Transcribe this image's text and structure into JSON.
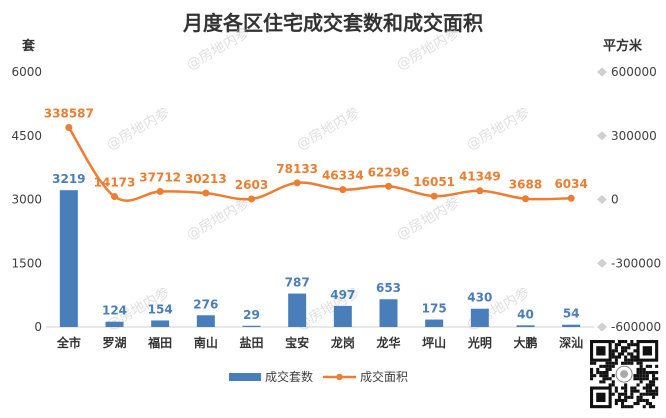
{
  "chart_data": {
    "type": "bar+line",
    "title": "月度各区住宅成交套数和成交面积",
    "y_left_unit": "套",
    "y_right_unit": "平方米",
    "y_left_range": [
      0,
      6000
    ],
    "y_left_ticks": [
      "0",
      "1500",
      "3000",
      "4500",
      "6000"
    ],
    "y_right_range": [
      -600000,
      600000
    ],
    "y_right_ticks": [
      "-600000",
      "-300000",
      "0",
      "300000",
      "600000"
    ],
    "categories": [
      "全市",
      "罗湖",
      "福田",
      "南山",
      "盐田",
      "宝安",
      "龙岗",
      "龙华",
      "坪山",
      "光明",
      "大鹏",
      "深汕"
    ],
    "series": [
      {
        "name": "成交套数",
        "type": "bar",
        "axis": "left",
        "color": "#4a7ebb",
        "values": [
          3219,
          124,
          154,
          276,
          29,
          787,
          497,
          653,
          175,
          430,
          40,
          54
        ]
      },
      {
        "name": "成交面积",
        "type": "line",
        "axis": "right",
        "color": "#ed7d31",
        "values": [
          338587,
          14173,
          37712,
          30213,
          2603,
          78133,
          46334,
          62296,
          16051,
          41349,
          3688,
          6034
        ]
      }
    ],
    "grid": false,
    "legend_position": "bottom"
  },
  "watermark": "@房地内参",
  "qr_code_icon": "qr-code-icon"
}
